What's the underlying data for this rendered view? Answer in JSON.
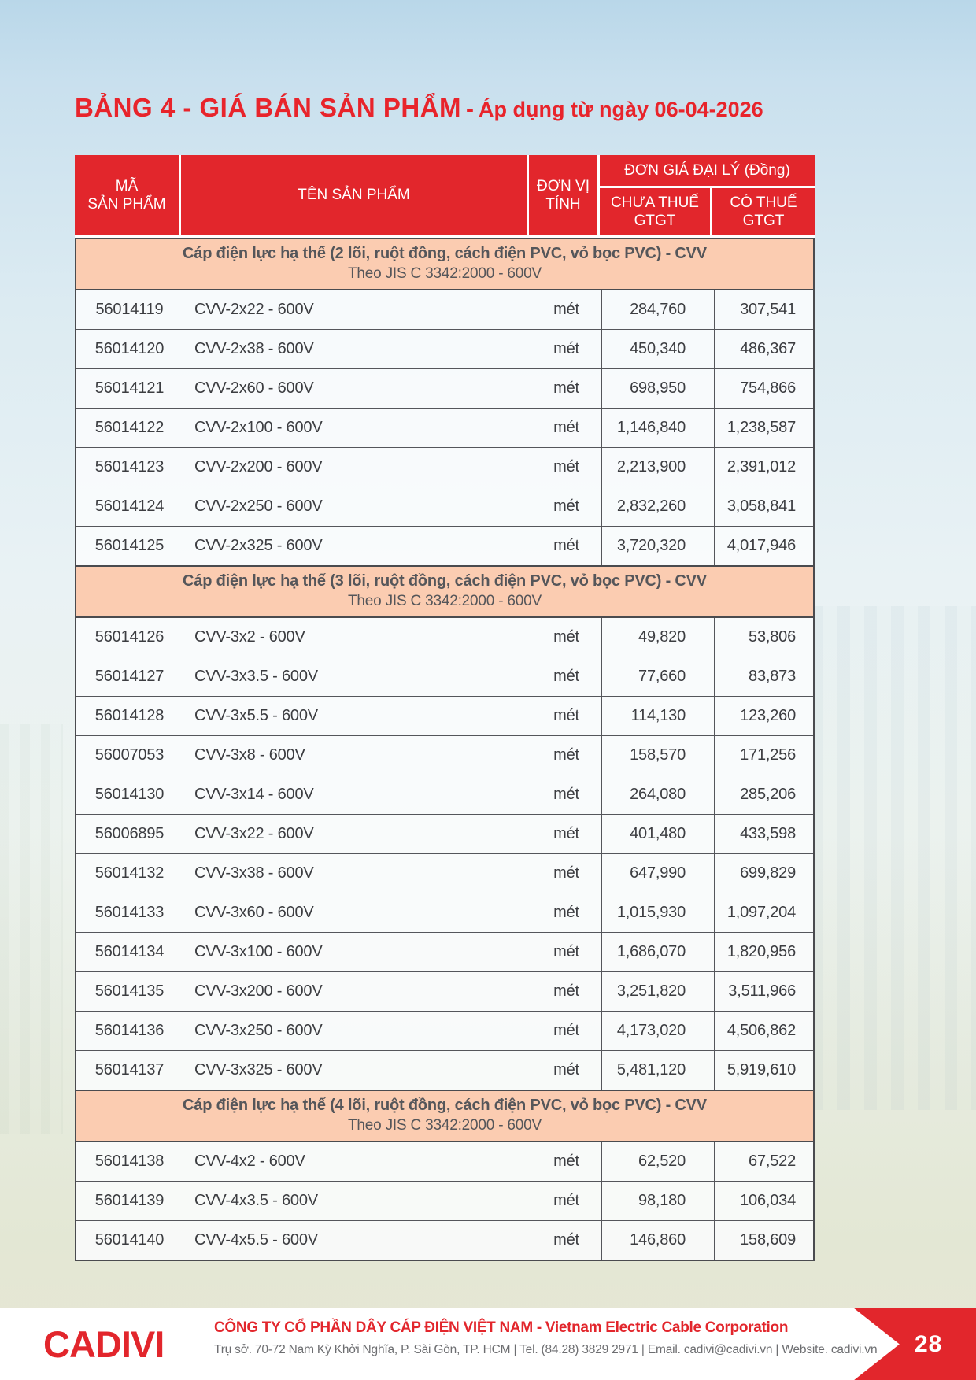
{
  "page": {
    "title": "BẢNG 4 - GIÁ BÁN SẢN PHẨM",
    "title_separator": "-",
    "title_note": "Áp dụng từ ngày 06-04-2026",
    "page_number": "28"
  },
  "table": {
    "columns": {
      "code": "MÃ\nSẢN PHẨM",
      "name": "TÊN SẢN PHẨM",
      "unit": "ĐƠN VỊ\nTÍNH",
      "price_group": "ĐƠN GIÁ ĐẠI LÝ (Đồng)",
      "price_ex_tax": "CHƯA THUẾ\nGTGT",
      "price_inc_tax": "CÓ THUẾ\nGTGT"
    },
    "sections": [
      {
        "title": "Cáp điện lực hạ thế (2 lõi, ruột đồng, cách điện PVC, vỏ bọc PVC) - CVV",
        "subtitle": "Theo JIS C 3342:2000 - 600V",
        "rows": [
          [
            "56014119",
            "CVV-2x22 - 600V",
            "mét",
            "284,760",
            "307,541"
          ],
          [
            "56014120",
            "CVV-2x38 - 600V",
            "mét",
            "450,340",
            "486,367"
          ],
          [
            "56014121",
            "CVV-2x60 - 600V",
            "mét",
            "698,950",
            "754,866"
          ],
          [
            "56014122",
            "CVV-2x100 - 600V",
            "mét",
            "1,146,840",
            "1,238,587"
          ],
          [
            "56014123",
            "CVV-2x200 - 600V",
            "mét",
            "2,213,900",
            "2,391,012"
          ],
          [
            "56014124",
            "CVV-2x250 - 600V",
            "mét",
            "2,832,260",
            "3,058,841"
          ],
          [
            "56014125",
            "CVV-2x325 - 600V",
            "mét",
            "3,720,320",
            "4,017,946"
          ]
        ]
      },
      {
        "title": "Cáp điện lực hạ thế (3 lõi, ruột đồng, cách điện PVC, vỏ bọc PVC) - CVV",
        "subtitle": "Theo JIS C 3342:2000 - 600V",
        "rows": [
          [
            "56014126",
            "CVV-3x2 - 600V",
            "mét",
            "49,820",
            "53,806"
          ],
          [
            "56014127",
            "CVV-3x3.5 - 600V",
            "mét",
            "77,660",
            "83,873"
          ],
          [
            "56014128",
            "CVV-3x5.5 - 600V",
            "mét",
            "114,130",
            "123,260"
          ],
          [
            "56007053",
            "CVV-3x8 - 600V",
            "mét",
            "158,570",
            "171,256"
          ],
          [
            "56014130",
            "CVV-3x14 - 600V",
            "mét",
            "264,080",
            "285,206"
          ],
          [
            "56006895",
            "CVV-3x22 - 600V",
            "mét",
            "401,480",
            "433,598"
          ],
          [
            "56014132",
            "CVV-3x38 - 600V",
            "mét",
            "647,990",
            "699,829"
          ],
          [
            "56014133",
            "CVV-3x60 - 600V",
            "mét",
            "1,015,930",
            "1,097,204"
          ],
          [
            "56014134",
            "CVV-3x100 - 600V",
            "mét",
            "1,686,070",
            "1,820,956"
          ],
          [
            "56014135",
            "CVV-3x200 - 600V",
            "mét",
            "3,251,820",
            "3,511,966"
          ],
          [
            "56014136",
            "CVV-3x250 - 600V",
            "mét",
            "4,173,020",
            "4,506,862"
          ],
          [
            "56014137",
            "CVV-3x325 - 600V",
            "mét",
            "5,481,120",
            "5,919,610"
          ]
        ]
      },
      {
        "title": "Cáp điện lực hạ thế (4 lõi, ruột đồng, cách điện PVC, vỏ bọc PVC) - CVV",
        "subtitle": "Theo JIS C 3342:2000 - 600V",
        "rows": [
          [
            "56014138",
            "CVV-4x2 - 600V",
            "mét",
            "62,520",
            "67,522"
          ],
          [
            "56014139",
            "CVV-4x3.5 - 600V",
            "mét",
            "98,180",
            "106,034"
          ],
          [
            "56014140",
            "CVV-4x5.5 - 600V",
            "mét",
            "146,860",
            "158,609"
          ]
        ]
      }
    ]
  },
  "footer": {
    "logo": "CADIVI",
    "company_line": "CÔNG TY CỔ PHẦN DÂY CÁP ĐIỆN VIỆT NAM - Vietnam Electric Cable Corporation",
    "address_line": "Trụ sở. 70-72 Nam Kỳ Khởi Nghĩa, P. Sài Gòn, TP. HCM | Tel. (84.28) 3829 2971 | Email. cadivi@cadivi.vn | Website. cadivi.vn"
  },
  "colors": {
    "brand_red": "#e2262c",
    "section_band_peach": "#fbccb1",
    "table_border_gray": "#4a4b4f"
  }
}
